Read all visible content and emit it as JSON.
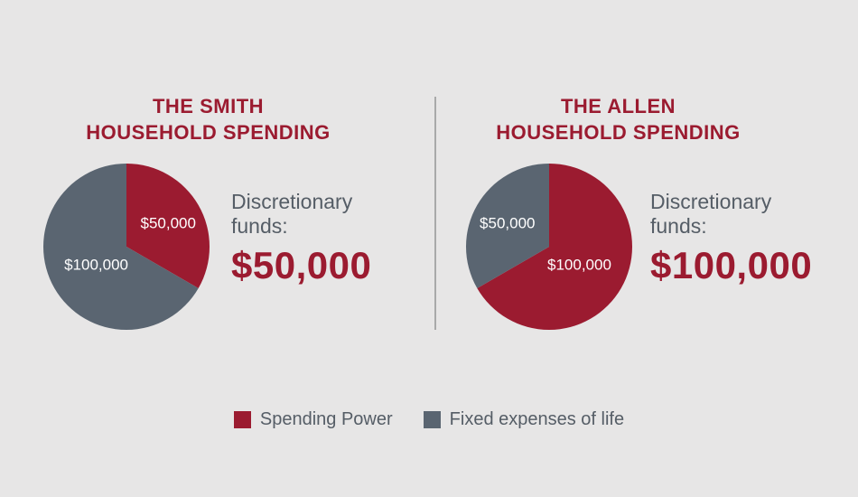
{
  "colors": {
    "spending": "#9b1b30",
    "fixed": "#5a6571",
    "text": "#555d66",
    "background": "#e7e6e6"
  },
  "chart_data": [
    {
      "type": "pie",
      "title": [
        "THE SMITH",
        "HOUSEHOLD SPENDING"
      ],
      "slices": [
        {
          "name": "Spending Power",
          "value": 50000,
          "label": "$50,000",
          "color": "#9b1b30"
        },
        {
          "name": "Fixed expenses of life",
          "value": 100000,
          "label": "$100,000",
          "color": "#5a6571"
        }
      ],
      "annotation": {
        "label": "Discretionary funds:",
        "value": "$50,000"
      }
    },
    {
      "type": "pie",
      "title": [
        "THE ALLEN",
        "HOUSEHOLD SPENDING"
      ],
      "slices": [
        {
          "name": "Spending Power",
          "value": 100000,
          "label": "$100,000",
          "color": "#9b1b30"
        },
        {
          "name": "Fixed expenses of life",
          "value": 50000,
          "label": "$50,000",
          "color": "#5a6571"
        }
      ],
      "annotation": {
        "label": "Discretionary funds:",
        "value": "$100,000"
      }
    }
  ],
  "legend": [
    {
      "label": "Spending Power",
      "color": "#9b1b30"
    },
    {
      "label": "Fixed expenses of life",
      "color": "#5a6571"
    }
  ]
}
